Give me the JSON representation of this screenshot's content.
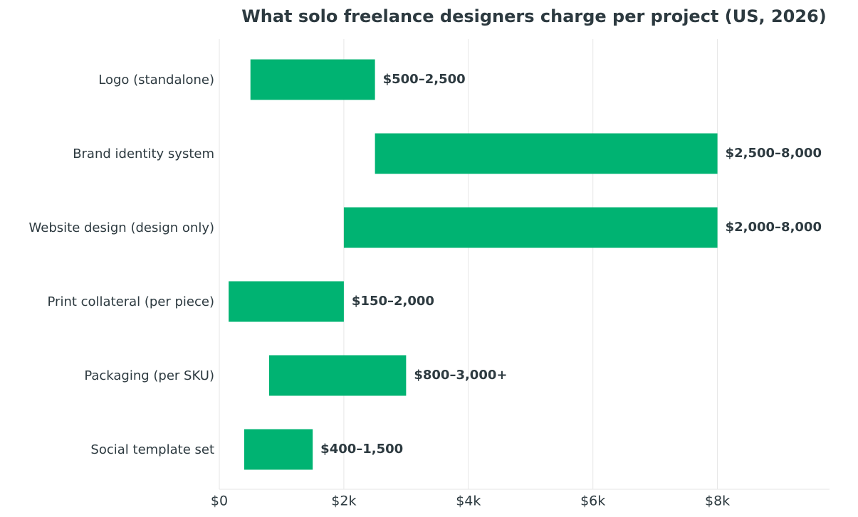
{
  "chart_data": {
    "type": "range-bar",
    "title": "What solo freelance designers charge per project (US, 2026)",
    "categories": [
      "Logo (standalone)",
      "Brand identity system",
      "Website design (design only)",
      "Print collateral (per piece)",
      "Packaging (per SKU)",
      "Social template set"
    ],
    "low": [
      500,
      2500,
      2000,
      150,
      800,
      400
    ],
    "high": [
      2500,
      8000,
      8000,
      2000,
      3000,
      1500
    ],
    "value_labels": [
      "$500–2,500",
      "$2,500–8,000",
      "$2,000–8,000",
      "$150–2,000",
      "$800–3,000+",
      "$400–1,500"
    ],
    "color": "#00b372",
    "xlim": [
      0,
      9800
    ],
    "xticks": [
      {
        "value": 0,
        "label": "$0"
      },
      {
        "value": 2000,
        "label": "$2k"
      },
      {
        "value": 4000,
        "label": "$4k"
      },
      {
        "value": 6000,
        "label": "$6k"
      },
      {
        "value": 8000,
        "label": "$8k"
      }
    ],
    "grid": true
  }
}
